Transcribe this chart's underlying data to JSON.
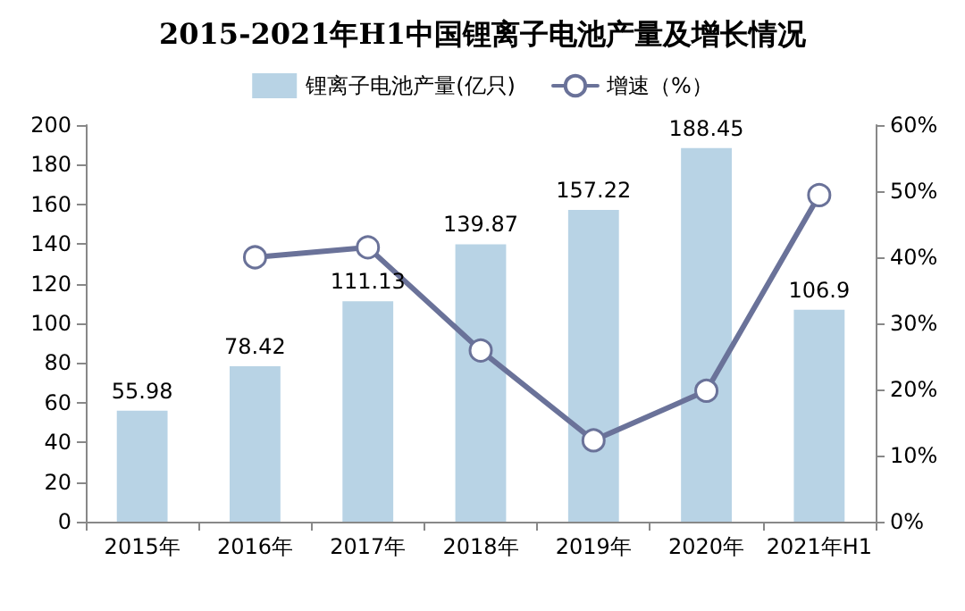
{
  "chart_data": {
    "type": "bar",
    "title": "2015-2021年H1中国锂离子电池产量及增长情况",
    "categories": [
      "2015年",
      "2016年",
      "2017年",
      "2018年",
      "2019年",
      "2020年",
      "2021年H1"
    ],
    "series": [
      {
        "name": "锂离子电池产量(亿只)",
        "color": "#b8d3e5",
        "values": [
          55.98,
          78.42,
          111.13,
          139.87,
          157.22,
          188.45,
          106.9
        ],
        "value_labels": [
          "55.98",
          "78.42",
          "111.13",
          "139.87",
          "157.22",
          "188.45",
          "106.9"
        ]
      },
      {
        "name": "增速（%）",
        "type": "line",
        "axis": "y2",
        "color": "#6a7299",
        "marker": "circle",
        "values": [
          null,
          40.0,
          41.5,
          25.9,
          12.3,
          19.8,
          49.4
        ]
      }
    ],
    "ylim": [
      0,
      200
    ],
    "yticks": [
      0,
      20,
      40,
      60,
      80,
      100,
      120,
      140,
      160,
      180,
      200
    ],
    "y2lim": [
      0,
      60
    ],
    "y2ticks": [
      {
        "value": 0,
        "label": "0%"
      },
      {
        "value": 10,
        "label": "10%"
      },
      {
        "value": 20,
        "label": "20%"
      },
      {
        "value": 30,
        "label": "30%"
      },
      {
        "value": 40,
        "label": "40%"
      },
      {
        "value": 50,
        "label": "50%"
      },
      {
        "value": 60,
        "label": "60%"
      }
    ],
    "grid": false,
    "legend": "top"
  }
}
